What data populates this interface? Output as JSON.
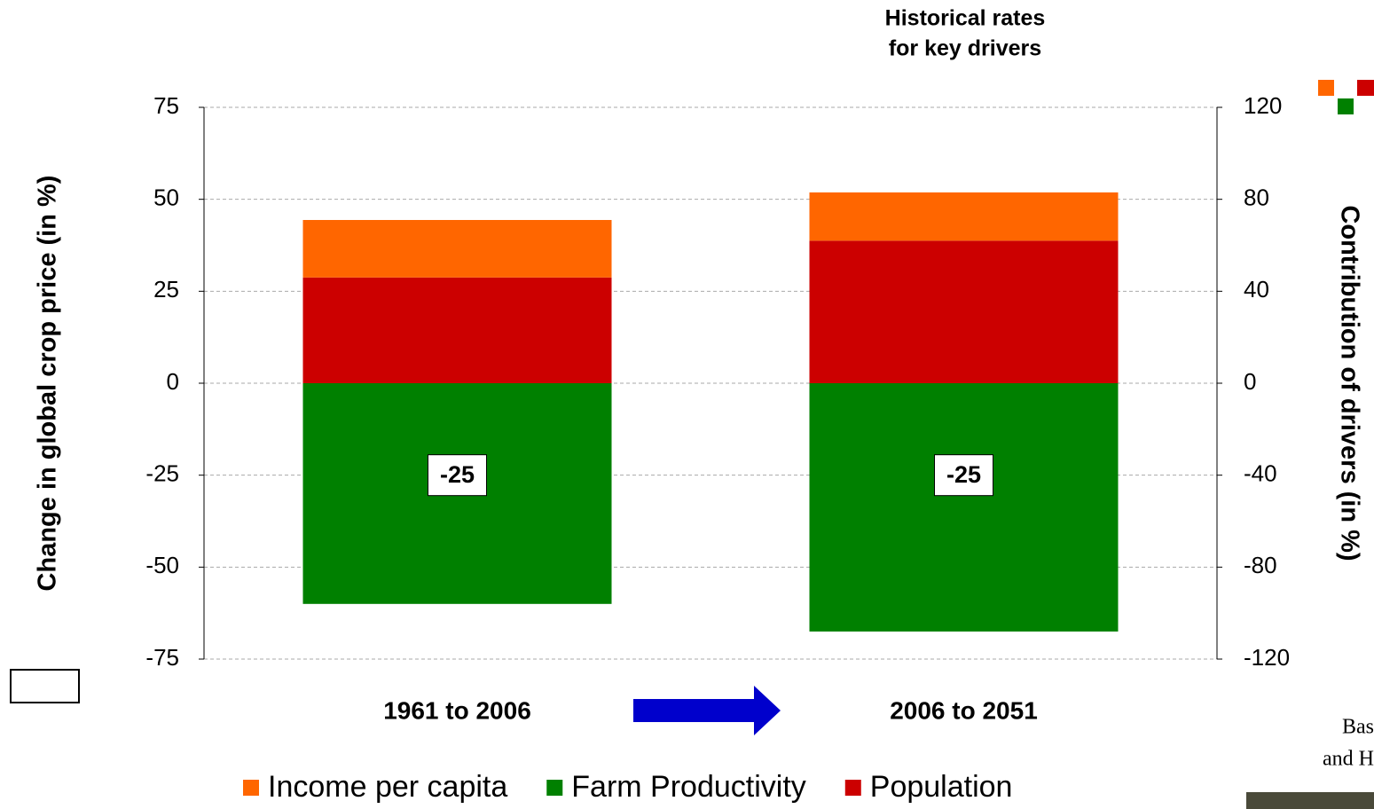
{
  "chart_data": {
    "type": "bar",
    "stacked": true,
    "title": [
      "Historical rates",
      "for key drivers"
    ],
    "y_label": "Change in global crop price (in %)",
    "y2_label": "Contribution of drivers  (in %)",
    "categories": [
      "1961 to 2006",
      "2006 to 2051"
    ],
    "series": [
      {
        "name": "Income per capita",
        "color": "#ff6600",
        "axis": "y2",
        "values": [
          25,
          21
        ]
      },
      {
        "name": "Farm Productivity",
        "color": "#008000",
        "axis": "y2",
        "values": [
          -96,
          -108
        ]
      },
      {
        "name": "Population",
        "color": "#cc0000",
        "axis": "y2",
        "values": [
          46,
          62
        ]
      }
    ],
    "net_labels": [
      -25,
      -25
    ],
    "ylim": [
      -75,
      75
    ],
    "yticks": [
      -75,
      -50,
      -25,
      0,
      25,
      50,
      75
    ],
    "y2lim": [
      -120,
      120
    ],
    "y2ticks": [
      -120,
      -80,
      -40,
      0,
      40,
      80,
      120
    ],
    "grid": true,
    "legend": "bottom",
    "side_text": [
      "Bas",
      "and H"
    ]
  }
}
